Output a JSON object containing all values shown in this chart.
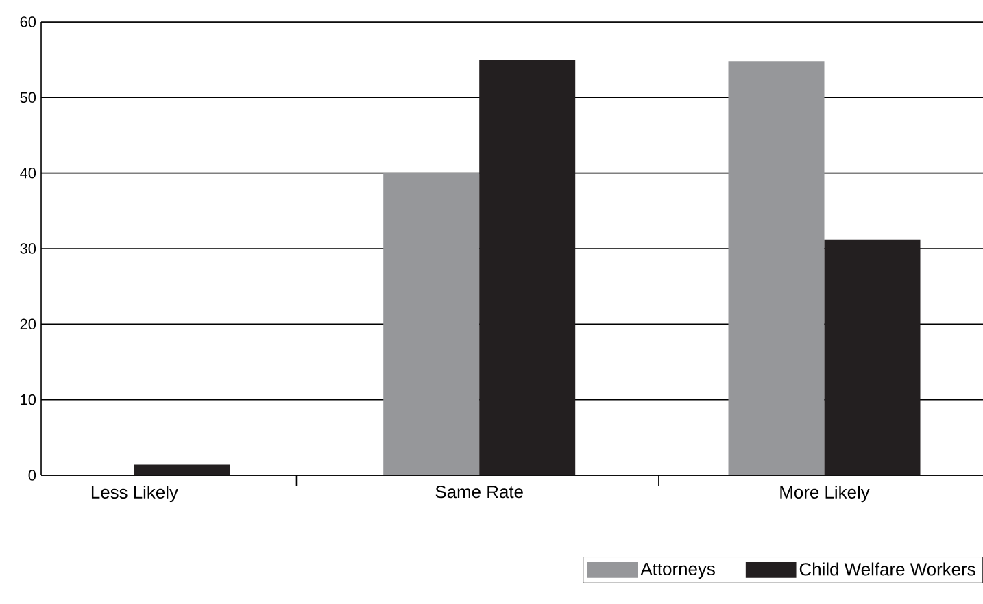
{
  "chart_data": {
    "type": "bar",
    "categories": [
      "Less Likely",
      "Same Rate",
      "More Likely"
    ],
    "series": [
      {
        "name": "Attorneys",
        "color": "#96979a",
        "values": [
          0,
          40,
          54.8
        ]
      },
      {
        "name": "Child Welfare Workers",
        "color": "#231f20",
        "values": [
          1.4,
          55,
          31.2
        ]
      }
    ],
    "ylim": [
      0,
      60
    ],
    "yticks": [
      0,
      10,
      20,
      30,
      40,
      50,
      60
    ],
    "grid": "y",
    "legend": "bottom right"
  }
}
